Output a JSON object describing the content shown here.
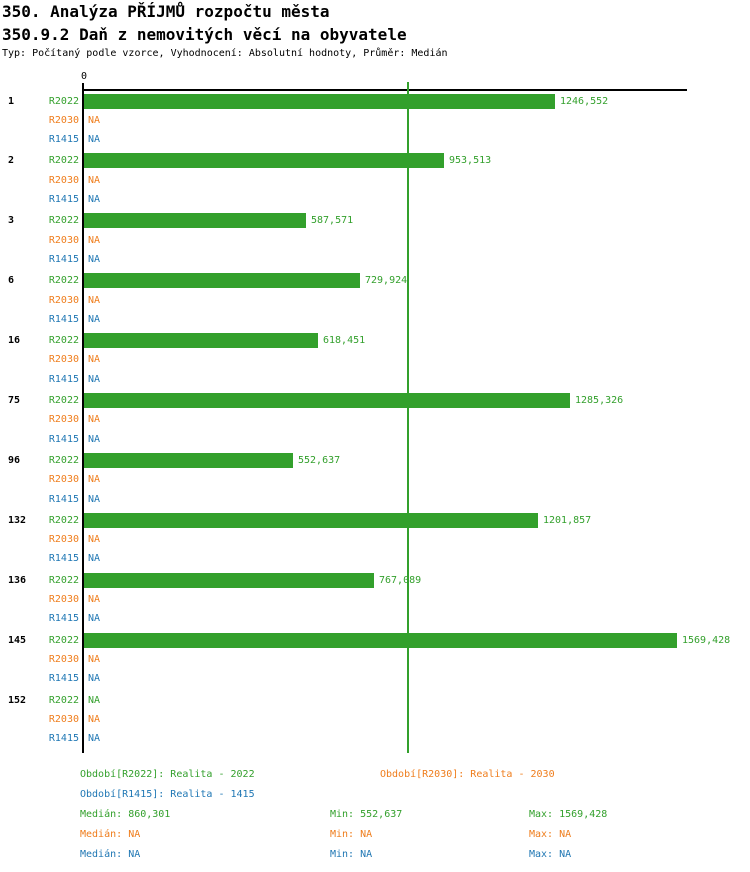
{
  "header": {
    "title_line1": "350. Analýza PŘÍJMŮ rozpočtu města",
    "title_line2": "350.9.2 Daň z nemovitých věcí na obyvatele",
    "subtitle": "Typ: Počítaný podle vzorce, Vyhodnocení: Absolutní hodnoty, Průměr: Medián"
  },
  "colors": {
    "green": "#33a02c",
    "orange": "#ef7d1c",
    "blue": "#1f77b4",
    "axis": "#000000",
    "median_line": "#33a02c"
  },
  "chart_data": {
    "type": "bar",
    "orientation": "horizontal",
    "title": "350.9.2 Daň z nemovitých věcí na obyvatele",
    "xlabel": "",
    "ylabel": "",
    "axis": {
      "zero_label": "0",
      "xmin": 0,
      "xmax": 1595,
      "grid": false
    },
    "median_line_value": 860.301,
    "series": [
      {
        "key": "R2022",
        "label": "R2022",
        "legend": "Období[R2022]: Realita - 2022",
        "color": "#33a02c"
      },
      {
        "key": "R2030",
        "label": "R2030",
        "legend": "Období[R2030]: Realita - 2030",
        "color": "#ef7d1c"
      },
      {
        "key": "R1415",
        "label": "R1415",
        "legend": "Období[R1415]: Realita - 1415",
        "color": "#1f77b4"
      }
    ],
    "groups": [
      {
        "label": "1",
        "bars": [
          {
            "series": "R2022",
            "value": 1246.552,
            "display": "1246,552"
          },
          {
            "series": "R2030",
            "value": null,
            "display": "NA"
          },
          {
            "series": "R1415",
            "value": null,
            "display": "NA"
          }
        ]
      },
      {
        "label": "2",
        "bars": [
          {
            "series": "R2022",
            "value": 953.513,
            "display": "953,513"
          },
          {
            "series": "R2030",
            "value": null,
            "display": "NA"
          },
          {
            "series": "R1415",
            "value": null,
            "display": "NA"
          }
        ]
      },
      {
        "label": "3",
        "bars": [
          {
            "series": "R2022",
            "value": 587.571,
            "display": "587,571"
          },
          {
            "series": "R2030",
            "value": null,
            "display": "NA"
          },
          {
            "series": "R1415",
            "value": null,
            "display": "NA"
          }
        ]
      },
      {
        "label": "6",
        "bars": [
          {
            "series": "R2022",
            "value": 729.924,
            "display": "729,924"
          },
          {
            "series": "R2030",
            "value": null,
            "display": "NA"
          },
          {
            "series": "R1415",
            "value": null,
            "display": "NA"
          }
        ]
      },
      {
        "label": "16",
        "bars": [
          {
            "series": "R2022",
            "value": 618.451,
            "display": "618,451"
          },
          {
            "series": "R2030",
            "value": null,
            "display": "NA"
          },
          {
            "series": "R1415",
            "value": null,
            "display": "NA"
          }
        ]
      },
      {
        "label": "75",
        "bars": [
          {
            "series": "R2022",
            "value": 1285.326,
            "display": "1285,326"
          },
          {
            "series": "R2030",
            "value": null,
            "display": "NA"
          },
          {
            "series": "R1415",
            "value": null,
            "display": "NA"
          }
        ]
      },
      {
        "label": "96",
        "bars": [
          {
            "series": "R2022",
            "value": 552.637,
            "display": "552,637"
          },
          {
            "series": "R2030",
            "value": null,
            "display": "NA"
          },
          {
            "series": "R1415",
            "value": null,
            "display": "NA"
          }
        ]
      },
      {
        "label": "132",
        "bars": [
          {
            "series": "R2022",
            "value": 1201.857,
            "display": "1201,857"
          },
          {
            "series": "R2030",
            "value": null,
            "display": "NA"
          },
          {
            "series": "R1415",
            "value": null,
            "display": "NA"
          }
        ]
      },
      {
        "label": "136",
        "bars": [
          {
            "series": "R2022",
            "value": 767.089,
            "display": "767,089"
          },
          {
            "series": "R2030",
            "value": null,
            "display": "NA"
          },
          {
            "series": "R1415",
            "value": null,
            "display": "NA"
          }
        ]
      },
      {
        "label": "145",
        "bars": [
          {
            "series": "R2022",
            "value": 1569.428,
            "display": "1569,428"
          },
          {
            "series": "R2030",
            "value": null,
            "display": "NA"
          },
          {
            "series": "R1415",
            "value": null,
            "display": "NA"
          }
        ]
      },
      {
        "label": "152",
        "bars": [
          {
            "series": "R2022",
            "value": null,
            "display": "NA"
          },
          {
            "series": "R2030",
            "value": null,
            "display": "NA"
          },
          {
            "series": "R1415",
            "value": null,
            "display": "NA"
          }
        ]
      }
    ],
    "stat_labels": {
      "median": "Medián:",
      "min": "Min:",
      "max": "Max:"
    },
    "stats": [
      {
        "series": "R2022",
        "median": "860,301",
        "min": "552,637",
        "max": "1569,428"
      },
      {
        "series": "R2030",
        "median": "NA",
        "min": "NA",
        "max": "NA"
      },
      {
        "series": "R1415",
        "median": "NA",
        "min": "NA",
        "max": "NA"
      }
    ]
  }
}
